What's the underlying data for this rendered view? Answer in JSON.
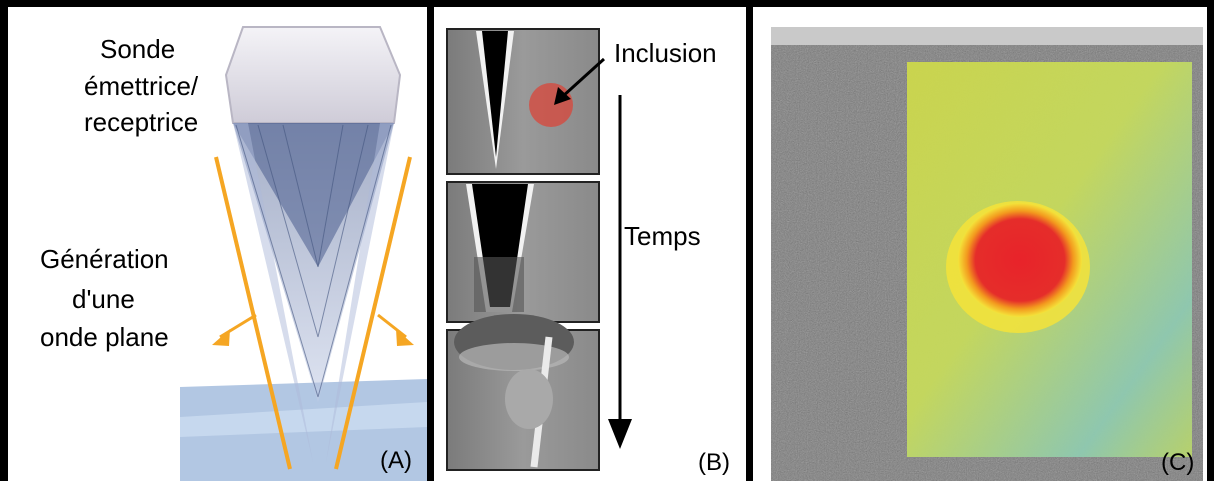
{
  "panel_a": {
    "probe_label_lines": [
      "Sonde",
      "émettrice/",
      "receptrice"
    ],
    "wave_label_lines": [
      "Génération",
      "d'une",
      "onde plane"
    ],
    "tag": "(A)"
  },
  "panel_b": {
    "inclusion_label": "Inclusion",
    "time_label": "Temps",
    "tag": "(B)"
  },
  "panel_c": {
    "tag": "(C)"
  },
  "colors": {
    "wave_orange": "#f5a623",
    "inclusion_red": "#d9453a",
    "elasto_green": "#c9d84a"
  }
}
